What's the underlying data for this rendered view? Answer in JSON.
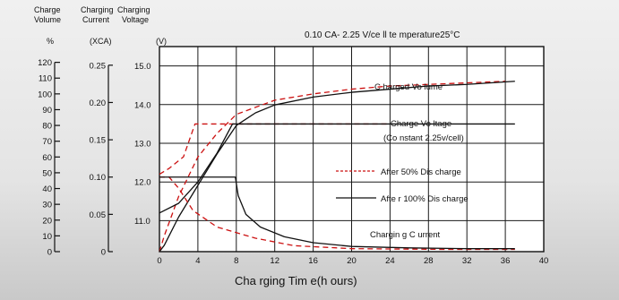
{
  "chart_data": {
    "type": "line",
    "title": "0.10 CA- 2.25 V/ce ll   te mperature25°C",
    "xlabel": "Cha rging Tim e(h ours)",
    "x_ticks": [
      0,
      4,
      8,
      12,
      16,
      20,
      24,
      28,
      32,
      36,
      40
    ],
    "xlim": [
      0,
      40
    ],
    "axes": {
      "volume": {
        "header": [
          "Charge",
          "Volume"
        ],
        "unit": "%",
        "ticks": [
          0,
          10,
          20,
          30,
          40,
          50,
          60,
          70,
          80,
          90,
          100,
          110,
          120
        ],
        "range": [
          0,
          130
        ]
      },
      "current": {
        "header": [
          "Charging",
          "Current"
        ],
        "unit": "(XCA)",
        "ticks": [
          "0",
          "0.05",
          "0.10",
          "0.15",
          "0.20",
          "0.25"
        ],
        "range": [
          0,
          0.275
        ]
      },
      "voltage": {
        "header": [
          "Charging",
          "Voltage"
        ],
        "unit": "(V)",
        "ticks": [
          "11.0",
          "12.0",
          "13.0",
          "14.0",
          "15.0"
        ],
        "range": [
          10.2,
          15.5
        ]
      }
    },
    "series": [
      {
        "name": "Charged Volume",
        "line_style": "dashed",
        "color": "#cc1111",
        "axis": "volume",
        "x": [
          0,
          0.5,
          2,
          4,
          6,
          8,
          12,
          16,
          20,
          24,
          28,
          32,
          36
        ],
        "y": [
          0,
          10,
          35,
          60,
          75,
          87,
          96,
          100,
          103,
          105,
          106,
          107,
          108
        ]
      },
      {
        "name": "Charged Volume",
        "line_style": "solid",
        "color": "#111111",
        "axis": "volume",
        "x": [
          0,
          0.5,
          2,
          4,
          6,
          8,
          10,
          12,
          16,
          20,
          24,
          28,
          32,
          37
        ],
        "y": [
          0,
          4,
          22,
          42,
          62,
          80,
          88,
          93,
          98,
          101,
          103,
          105,
          106,
          108
        ]
      },
      {
        "name": "Charge Voltage",
        "line_style": "dashed",
        "color": "#cc1111",
        "axis": "voltage",
        "x": [
          0,
          1,
          2.5,
          3.7,
          24
        ],
        "y": [
          12.2,
          12.35,
          12.65,
          13.5,
          13.5
        ]
      },
      {
        "name": "Charge Voltage",
        "line_style": "solid",
        "color": "#111111",
        "axis": "voltage",
        "x": [
          0,
          2,
          4,
          6,
          7.6,
          37
        ],
        "y": [
          11.2,
          11.45,
          12.0,
          12.75,
          13.5,
          13.5
        ]
      },
      {
        "name": "Charging Current",
        "line_style": "dashed",
        "color": "#cc1111",
        "axis": "current",
        "x": [
          0,
          1,
          2,
          3.5,
          6,
          10,
          14,
          20,
          30,
          37
        ],
        "y": [
          0.1,
          0.1,
          0.085,
          0.055,
          0.033,
          0.018,
          0.008,
          0.004,
          0.003,
          0.003
        ]
      },
      {
        "name": "Charging Current",
        "line_style": "solid",
        "color": "#111111",
        "axis": "current",
        "x": [
          0,
          7.9,
          8.2,
          9,
          10.5,
          13,
          16,
          20,
          26,
          32,
          37
        ],
        "y": [
          0.1,
          0.1,
          0.075,
          0.05,
          0.033,
          0.02,
          0.012,
          0.007,
          0.005,
          0.004,
          0.004
        ]
      }
    ],
    "annotations": {
      "charged_volume": "C harged Vo lume",
      "charge_voltage": "Charge Vo ltage",
      "charge_voltage_sub": "(Co nstant 2.25v/cell)",
      "charging_current": "Chargin g C urrent"
    },
    "legend": {
      "placement": "right-middle",
      "items": [
        {
          "label": "After 50% Dis charge",
          "line_style": "dashed",
          "color": "#cc1111"
        },
        {
          "label": "Afte r 100% Dis charge",
          "line_style": "solid",
          "color": "#111111"
        }
      ]
    },
    "grid": true
  }
}
